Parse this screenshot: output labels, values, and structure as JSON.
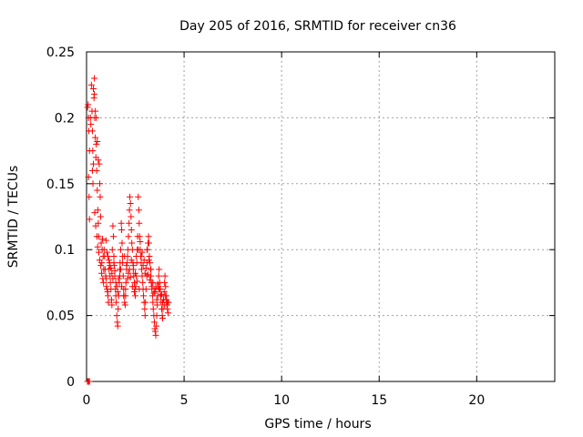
{
  "chart_data": {
    "type": "scatter",
    "title": "Day 205 of 2016, SRMTID for receiver cn36",
    "xlabel": "GPS time / hours",
    "ylabel": "SRMTID / TECUs",
    "xlim": [
      0,
      24
    ],
    "ylim": [
      0,
      0.25
    ],
    "x_ticks": [
      0,
      5,
      10,
      15,
      20
    ],
    "y_ticks": [
      0,
      0.05,
      0.1,
      0.15,
      0.2,
      0.25
    ],
    "x_tick_labels": [
      "0",
      "5",
      "10",
      "15",
      "20"
    ],
    "y_tick_labels": [
      "0",
      "0.05",
      "0.1",
      "0.15",
      "0.2",
      "0.25"
    ],
    "grid": true,
    "marker": "plus",
    "color": "#ff0000",
    "series": [
      {
        "x": [
          0.05,
          0.08,
          0.1,
          0.12,
          0.15,
          0.1,
          0.13,
          0.15,
          0.2,
          0.22,
          0.25,
          0.28,
          0.3,
          0.32,
          0.35,
          0.38,
          0.4,
          0.42,
          0.45,
          0.48,
          0.5,
          0.52,
          0.55,
          0.58,
          0.6,
          0.62,
          0.65,
          0.68,
          0.7,
          0.72,
          0.75,
          0.78,
          0.8,
          0.82,
          0.85,
          0.88,
          0.35,
          0.4,
          0.45,
          0.5,
          0.55,
          0.6,
          0.3,
          0.33,
          0.42,
          0.47,
          0.53,
          0.57,
          0.63,
          0.67,
          0.73,
          0.77,
          0.83,
          0.87,
          0.9,
          0.92,
          0.95,
          0.98,
          1.0,
          1.02,
          1.05,
          1.08,
          1.1,
          1.12,
          1.15,
          1.18,
          1.2,
          1.22,
          1.25,
          1.28,
          1.3,
          1.32,
          1.35,
          1.38,
          1.4,
          1.42,
          1.45,
          1.48,
          1.5,
          1.52,
          1.55,
          1.58,
          1.6,
          1.62,
          1.65,
          1.68,
          1.7,
          1.72,
          1.75,
          1.78,
          1.8,
          1.82,
          1.85,
          1.88,
          1.9,
          1.92,
          1.95,
          1.98,
          2.0,
          2.02,
          2.05,
          2.08,
          2.1,
          2.12,
          2.15,
          2.18,
          2.2,
          2.22,
          2.25,
          2.28,
          2.3,
          2.32,
          2.35,
          2.38,
          2.4,
          2.42,
          2.45,
          2.48,
          2.5,
          2.52,
          2.55,
          2.58,
          2.6,
          2.62,
          2.65,
          2.68,
          2.7,
          2.72,
          2.75,
          2.78,
          2.8,
          2.82,
          2.85,
          2.88,
          2.9,
          2.92,
          2.95,
          2.98,
          3.0,
          3.02,
          3.05,
          3.08,
          3.1,
          3.12,
          3.15,
          3.18,
          3.2,
          3.22,
          3.25,
          3.28,
          3.3,
          3.32,
          3.35,
          3.38,
          3.4,
          3.42,
          3.45,
          3.48,
          3.5,
          3.52,
          3.55,
          3.58,
          3.6,
          3.62,
          3.65,
          3.68,
          3.7,
          3.72,
          3.75,
          3.78,
          3.8,
          3.82,
          3.85,
          3.88,
          3.9,
          3.92,
          3.95,
          3.98,
          4.0,
          4.02,
          4.05,
          4.08,
          4.1,
          4.12,
          4.15,
          4.18,
          4.2,
          1.0,
          1.1,
          1.2,
          1.3,
          1.4,
          1.5,
          1.6,
          1.7,
          1.8,
          1.9,
          2.0,
          2.1,
          2.2,
          2.3,
          2.4,
          2.5,
          2.6,
          2.7,
          2.8,
          2.9,
          3.0,
          3.1,
          3.2,
          3.3,
          3.4,
          3.5,
          3.6,
          3.7,
          3.8,
          3.9,
          4.0,
          4.1,
          1.05,
          1.15,
          1.25,
          1.35,
          1.45,
          1.55,
          1.65,
          1.75,
          1.85,
          1.95,
          2.05,
          2.15,
          2.25,
          2.35,
          2.45,
          2.55,
          2.65,
          2.75,
          2.85,
          2.95,
          3.05,
          3.15,
          3.25,
          3.35,
          3.45,
          3.55,
          3.65,
          3.75,
          3.85,
          3.95,
          4.05,
          4.15,
          0.05,
          0.08,
          0.1,
          0.12,
          0.15
        ],
        "y": [
          0.208,
          0.21,
          0.2,
          0.19,
          0.175,
          0.155,
          0.14,
          0.123,
          0.2,
          0.195,
          0.225,
          0.205,
          0.19,
          0.175,
          0.165,
          0.215,
          0.23,
          0.2,
          0.185,
          0.17,
          0.18,
          0.16,
          0.145,
          0.13,
          0.12,
          0.11,
          0.165,
          0.15,
          0.14,
          0.125,
          0.105,
          0.09,
          0.1,
          0.108,
          0.095,
          0.085,
          0.222,
          0.218,
          0.205,
          0.2,
          0.182,
          0.168,
          0.16,
          0.15,
          0.128,
          0.118,
          0.11,
          0.102,
          0.098,
          0.092,
          0.088,
          0.082,
          0.078,
          0.075,
          0.1,
          0.095,
          0.085,
          0.08,
          0.078,
          0.072,
          0.07,
          0.068,
          0.065,
          0.06,
          0.085,
          0.09,
          0.08,
          0.075,
          0.07,
          0.062,
          0.058,
          0.1,
          0.118,
          0.11,
          0.095,
          0.088,
          0.08,
          0.07,
          0.065,
          0.06,
          0.05,
          0.045,
          0.042,
          0.055,
          0.065,
          0.075,
          0.085,
          0.09,
          0.1,
          0.12,
          0.115,
          0.105,
          0.095,
          0.08,
          0.07,
          0.065,
          0.06,
          0.058,
          0.065,
          0.075,
          0.085,
          0.09,
          0.095,
          0.1,
          0.11,
          0.12,
          0.13,
          0.14,
          0.135,
          0.125,
          0.115,
          0.105,
          0.1,
          0.09,
          0.085,
          0.08,
          0.075,
          0.07,
          0.065,
          0.072,
          0.08,
          0.09,
          0.1,
          0.11,
          0.14,
          0.13,
          0.12,
          0.11,
          0.1,
          0.095,
          0.09,
          0.085,
          0.08,
          0.075,
          0.07,
          0.065,
          0.06,
          0.055,
          0.05,
          0.06,
          0.07,
          0.08,
          0.09,
          0.1,
          0.105,
          0.11,
          0.105,
          0.095,
          0.09,
          0.085,
          0.08,
          0.075,
          0.07,
          0.065,
          0.06,
          0.055,
          0.05,
          0.045,
          0.04,
          0.038,
          0.035,
          0.042,
          0.05,
          0.058,
          0.065,
          0.072,
          0.08,
          0.085,
          0.075,
          0.07,
          0.065,
          0.06,
          0.055,
          0.05,
          0.048,
          0.055,
          0.062,
          0.068,
          0.075,
          0.08,
          0.072,
          0.065,
          0.06,
          0.058,
          0.055,
          0.052,
          0.06,
          0.107,
          0.095,
          0.088,
          0.082,
          0.09,
          0.075,
          0.068,
          0.08,
          0.072,
          0.065,
          0.07,
          0.078,
          0.085,
          0.092,
          0.088,
          0.082,
          0.076,
          0.07,
          0.095,
          0.088,
          0.082,
          0.1,
          0.092,
          0.085,
          0.075,
          0.068,
          0.062,
          0.07,
          0.065,
          0.06,
          0.058,
          0.062,
          0.098,
          0.092,
          0.086,
          0.078,
          0.084,
          0.072,
          0.078,
          0.085,
          0.09,
          0.095,
          0.088,
          0.082,
          0.079,
          0.072,
          0.068,
          0.095,
          0.1,
          0.106,
          0.098,
          0.092,
          0.086,
          0.081,
          0.077,
          0.072,
          0.067,
          0.071,
          0.074,
          0.07,
          0.066,
          0.062,
          0.065,
          0.06,
          0.0,
          0.0,
          0.0,
          0.0,
          0.0
        ]
      }
    ]
  }
}
